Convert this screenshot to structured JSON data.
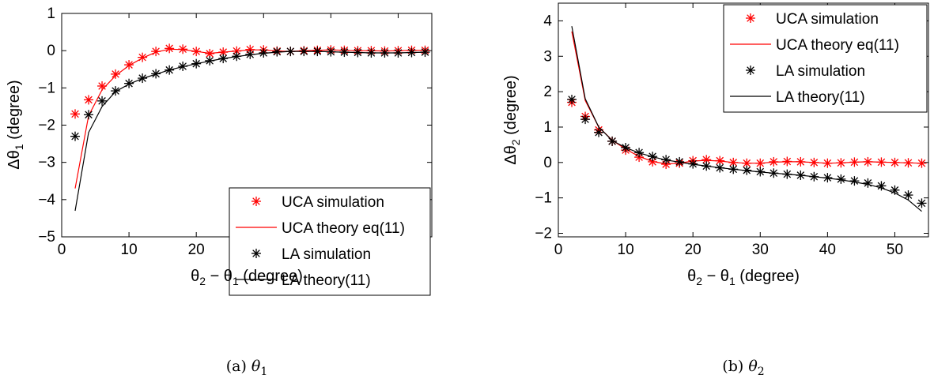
{
  "figure": {
    "panels": [
      {
        "caption_prefix": "(a)",
        "caption_symbol": "θ",
        "caption_sub": "1"
      },
      {
        "caption_prefix": "(b)",
        "caption_symbol": "θ",
        "caption_sub": "2"
      }
    ]
  },
  "colors": {
    "uca": "#ff0000",
    "la": "#000000",
    "axis": "#000000"
  },
  "chart_data": [
    {
      "type": "line",
      "title": "",
      "xlabel": "θ2 − θ1 (degree)",
      "xlabel_parts": {
        "a": "θ",
        "a_sub": "2",
        "mid": " − θ",
        "b_sub": "1",
        "tail": " (degree)"
      },
      "ylabel": "Δθ1 (degree)",
      "ylabel_parts": {
        "pre": "Δθ",
        "sub": "1",
        "tail": " (degree)"
      },
      "xlim": [
        0,
        55
      ],
      "ylim": [
        -5,
        1
      ],
      "xticks": [
        0,
        10,
        20,
        30,
        40,
        50
      ],
      "yticks": [
        -5,
        -4,
        -3,
        -2,
        -1,
        0,
        1
      ],
      "xtick_labels": [
        "0",
        "10",
        "20",
        "30",
        "40",
        "50"
      ],
      "ytick_labels": [
        "−5",
        "−4",
        "−3",
        "−2",
        "−1",
        "0",
        "1"
      ],
      "grid": false,
      "legend_position": "bottom-right",
      "series": [
        {
          "name": "UCA simulation",
          "kind": "marker",
          "color": "#ff0000",
          "x": [
            2,
            4,
            6,
            8,
            10,
            12,
            14,
            16,
            18,
            20,
            22,
            24,
            26,
            28,
            30,
            32,
            34,
            36,
            38,
            40,
            42,
            44,
            46,
            48,
            50,
            52,
            54
          ],
          "y": [
            -1.7,
            -1.32,
            -0.95,
            -0.63,
            -0.38,
            -0.18,
            -0.02,
            0.06,
            0.04,
            -0.02,
            -0.08,
            -0.04,
            -0.01,
            0.03,
            0.02,
            -0.01,
            -0.02,
            0.0,
            0.01,
            0.02,
            0.01,
            0.0,
            0.0,
            -0.01,
            0.0,
            0.01,
            0.01
          ]
        },
        {
          "name": "UCA theory eq(11)",
          "kind": "line",
          "color": "#ff0000",
          "x": [
            2,
            4,
            6,
            8,
            10,
            12,
            14,
            16,
            18,
            20,
            22,
            24,
            26,
            28,
            30,
            32,
            34,
            36,
            38,
            40,
            42,
            44,
            46,
            48,
            50,
            52,
            54
          ],
          "y": [
            -3.7,
            -1.75,
            -1.05,
            -0.67,
            -0.4,
            -0.2,
            -0.04,
            0.04,
            0.03,
            -0.02,
            -0.07,
            -0.04,
            -0.01,
            0.02,
            0.02,
            -0.01,
            -0.02,
            0.0,
            0.01,
            0.02,
            0.01,
            0.0,
            0.0,
            -0.01,
            0.0,
            0.01,
            0.01
          ]
        },
        {
          "name": "LA simulation",
          "kind": "marker",
          "color": "#000000",
          "x": [
            2,
            4,
            6,
            8,
            10,
            12,
            14,
            16,
            18,
            20,
            22,
            24,
            26,
            28,
            30,
            32,
            34,
            36,
            38,
            40,
            42,
            44,
            46,
            48,
            50,
            52,
            54
          ],
          "y": [
            -2.3,
            -1.72,
            -1.35,
            -1.08,
            -0.88,
            -0.74,
            -0.62,
            -0.52,
            -0.42,
            -0.35,
            -0.27,
            -0.21,
            -0.15,
            -0.1,
            -0.06,
            -0.03,
            -0.02,
            -0.02,
            -0.02,
            -0.03,
            -0.04,
            -0.05,
            -0.06,
            -0.06,
            -0.06,
            -0.05,
            -0.04
          ]
        },
        {
          "name": "LA theory(11)",
          "kind": "line",
          "color": "#000000",
          "x": [
            2,
            4,
            6,
            8,
            10,
            12,
            14,
            16,
            18,
            20,
            22,
            24,
            26,
            28,
            30,
            32,
            34,
            36,
            38,
            40,
            42,
            44,
            46,
            48,
            50,
            52,
            54
          ],
          "y": [
            -4.3,
            -2.2,
            -1.5,
            -1.1,
            -0.9,
            -0.75,
            -0.63,
            -0.52,
            -0.43,
            -0.35,
            -0.28,
            -0.21,
            -0.16,
            -0.11,
            -0.07,
            -0.04,
            -0.02,
            -0.02,
            -0.02,
            -0.03,
            -0.04,
            -0.05,
            -0.06,
            -0.06,
            -0.06,
            -0.05,
            -0.04
          ]
        }
      ]
    },
    {
      "type": "line",
      "title": "",
      "xlabel": "θ2 − θ1 (degree)",
      "xlabel_parts": {
        "a": "θ",
        "a_sub": "2",
        "mid": " − θ",
        "b_sub": "1",
        "tail": " (degree)"
      },
      "ylabel": "Δθ2 (degree)",
      "ylabel_parts": {
        "pre": "Δθ",
        "sub": "2",
        "tail": " (degree)"
      },
      "xlim": [
        0,
        55
      ],
      "ylim": [
        -2.1,
        4.5
      ],
      "xticks": [
        0,
        10,
        20,
        30,
        40,
        50
      ],
      "yticks": [
        -2,
        -1,
        0,
        1,
        2,
        3,
        4
      ],
      "xtick_labels": [
        "0",
        "10",
        "20",
        "30",
        "40",
        "50"
      ],
      "ytick_labels": [
        "−2",
        "−1",
        "0",
        "1",
        "2",
        "3",
        "4"
      ],
      "grid": false,
      "legend_position": "top-right",
      "series": [
        {
          "name": "UCA simulation",
          "kind": "marker",
          "color": "#ff0000",
          "x": [
            2,
            4,
            6,
            8,
            10,
            12,
            14,
            16,
            18,
            20,
            22,
            24,
            26,
            28,
            30,
            32,
            34,
            36,
            38,
            40,
            42,
            44,
            46,
            48,
            50,
            52,
            54
          ],
          "y": [
            1.7,
            1.3,
            0.92,
            0.6,
            0.35,
            0.15,
            0.02,
            -0.05,
            -0.02,
            0.05,
            0.08,
            0.05,
            0.0,
            -0.02,
            -0.02,
            0.02,
            0.03,
            0.02,
            0.0,
            -0.02,
            -0.01,
            0.01,
            0.02,
            0.01,
            0.0,
            -0.01,
            -0.02
          ]
        },
        {
          "name": "UCA theory eq(11)",
          "kind": "line",
          "color": "#ff0000",
          "x": [
            2,
            4,
            6,
            8,
            10,
            12,
            14,
            16,
            18,
            20,
            22,
            24,
            26,
            28,
            30,
            32,
            34,
            36,
            38,
            40,
            42,
            44,
            46,
            48,
            50,
            52,
            54
          ],
          "y": [
            3.7,
            1.75,
            1.0,
            0.63,
            0.38,
            0.17,
            0.03,
            -0.04,
            -0.02,
            0.04,
            0.06,
            0.04,
            0.0,
            -0.02,
            -0.02,
            0.01,
            0.02,
            0.02,
            0.0,
            -0.02,
            -0.01,
            0.01,
            0.02,
            0.01,
            0.0,
            -0.01,
            -0.02
          ]
        },
        {
          "name": "LA simulation",
          "kind": "marker",
          "color": "#000000",
          "x": [
            2,
            4,
            6,
            8,
            10,
            12,
            14,
            16,
            18,
            20,
            22,
            24,
            26,
            28,
            30,
            32,
            34,
            36,
            38,
            40,
            42,
            44,
            46,
            48,
            50,
            52,
            54
          ],
          "y": [
            1.78,
            1.22,
            0.85,
            0.6,
            0.42,
            0.28,
            0.17,
            0.08,
            0.02,
            -0.04,
            -0.1,
            -0.15,
            -0.19,
            -0.22,
            -0.26,
            -0.3,
            -0.33,
            -0.36,
            -0.4,
            -0.43,
            -0.47,
            -0.52,
            -0.58,
            -0.66,
            -0.78,
            -0.92,
            -1.15
          ]
        },
        {
          "name": "LA theory(11)",
          "kind": "line",
          "color": "#000000",
          "x": [
            2,
            4,
            6,
            8,
            10,
            12,
            14,
            16,
            18,
            20,
            22,
            24,
            26,
            28,
            30,
            32,
            34,
            36,
            38,
            40,
            42,
            44,
            46,
            48,
            50,
            52,
            54
          ],
          "y": [
            3.85,
            1.8,
            1.0,
            0.62,
            0.42,
            0.27,
            0.16,
            0.07,
            0.01,
            -0.05,
            -0.1,
            -0.15,
            -0.19,
            -0.23,
            -0.27,
            -0.3,
            -0.33,
            -0.36,
            -0.4,
            -0.44,
            -0.49,
            -0.55,
            -0.62,
            -0.72,
            -0.86,
            -1.06,
            -1.38
          ]
        }
      ]
    }
  ]
}
